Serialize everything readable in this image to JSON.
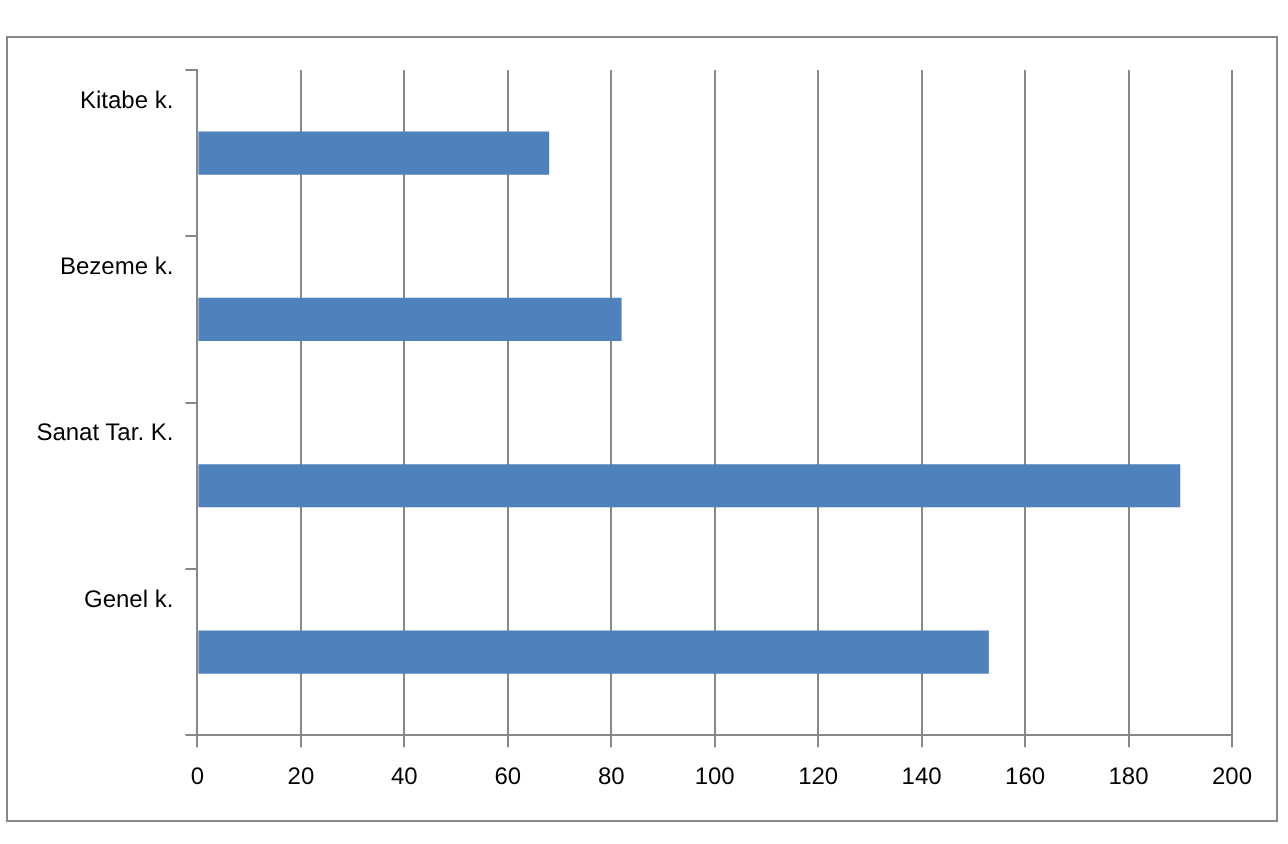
{
  "chart_data": {
    "type": "bar",
    "orientation": "horizontal",
    "categories": [
      "Kitabe k.",
      "Bezeme k.",
      "Sanat Tar. K.",
      "Genel k."
    ],
    "values": [
      68,
      82,
      190,
      153
    ],
    "color": "#4f81bd",
    "xlim": [
      0,
      200
    ],
    "xticks": [
      0,
      20,
      40,
      60,
      80,
      100,
      120,
      140,
      160,
      180,
      200
    ],
    "grid": "x",
    "legend": false
  }
}
